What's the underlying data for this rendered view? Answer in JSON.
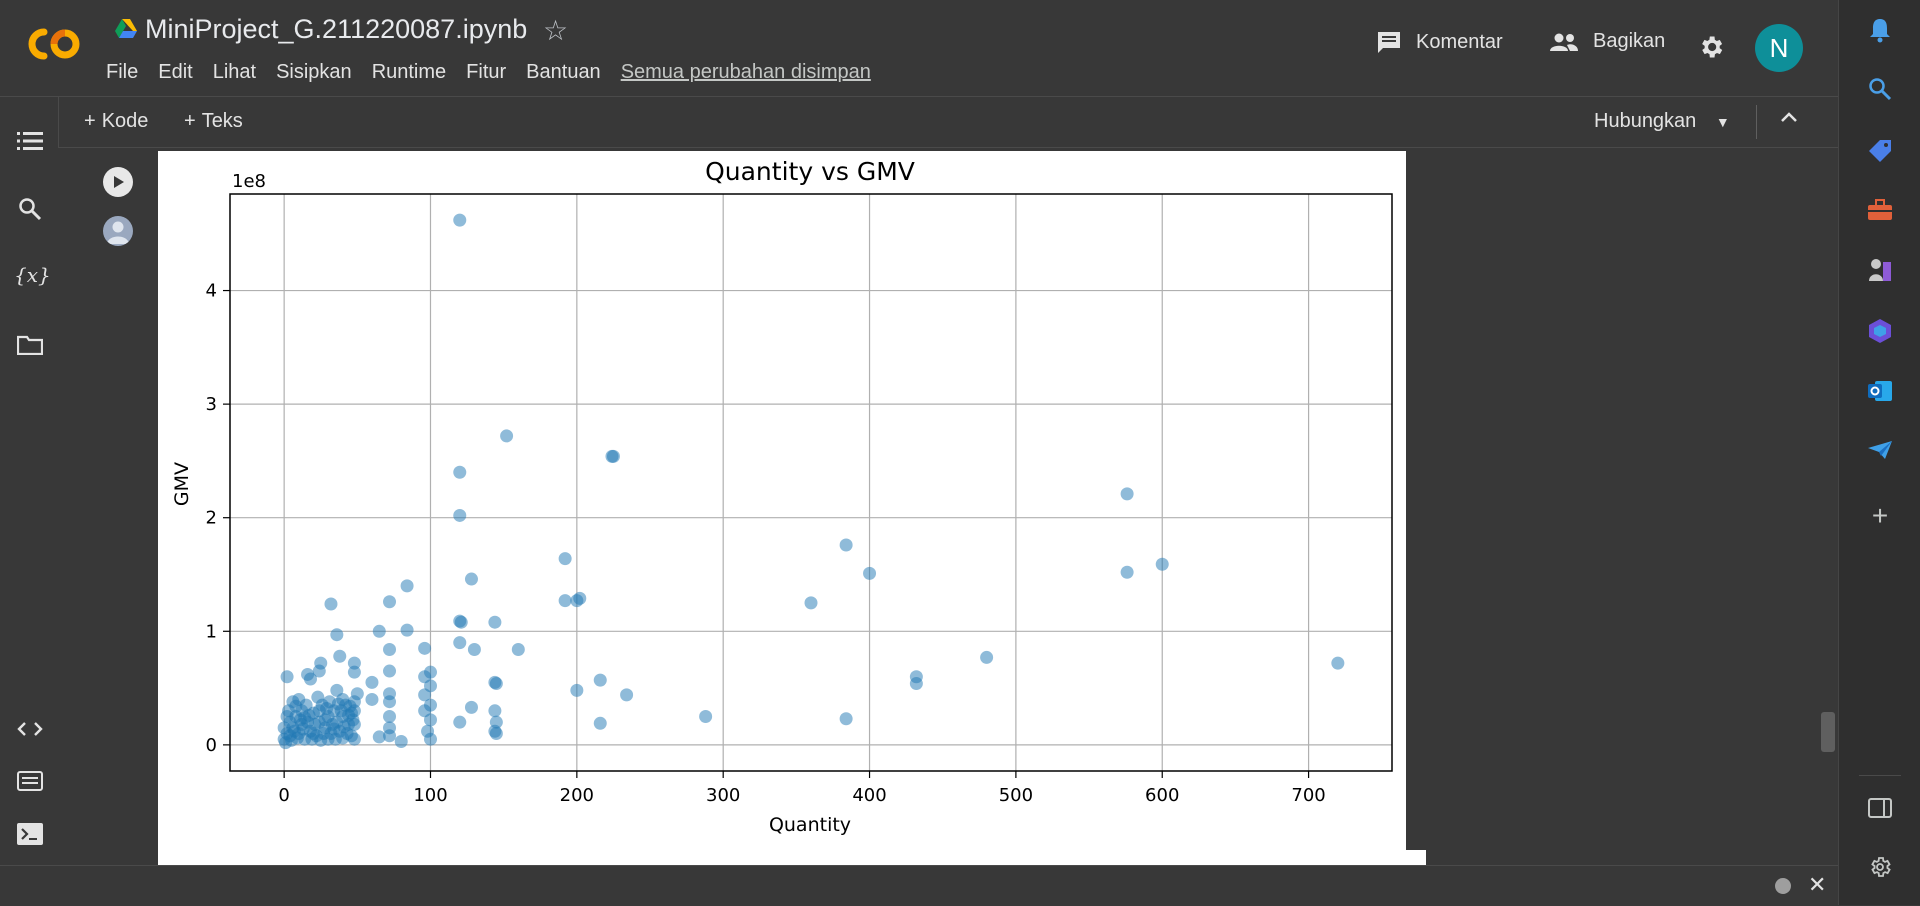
{
  "app": {
    "notebook_title": "MiniProject_G.211220087.ipynb",
    "menu": [
      "File",
      "Edit",
      "Lihat",
      "Sisipkan",
      "Runtime",
      "Fitur",
      "Bantuan"
    ],
    "saved_status": "Semua perubahan disimpan",
    "comment_label": "Komentar",
    "share_label": "Bagikan",
    "avatar_letter": "N"
  },
  "toolbar": {
    "add_code": "Kode",
    "add_text": "Teks",
    "connect_label": "Hubungkan"
  },
  "colors": {
    "accent_avatar": "#0e8f99",
    "scatter": "#1f77b4"
  },
  "chart_data": {
    "type": "scatter",
    "title": "Quantity vs GMV",
    "xlabel": "Quantity",
    "ylabel": "GMV",
    "y_offset_label": "1e8",
    "xlim": [
      -37,
      757
    ],
    "ylim": [
      -0.23,
      4.85
    ],
    "xticks": [
      0,
      100,
      200,
      300,
      400,
      500,
      600,
      700
    ],
    "yticks": [
      0,
      1,
      2,
      3,
      4
    ],
    "grid": true,
    "series": [
      {
        "points": [
          [
            120,
            4.62
          ],
          [
            152,
            2.72
          ],
          [
            224,
            2.54
          ],
          [
            225,
            2.54
          ],
          [
            120,
            2.4
          ],
          [
            120,
            2.02
          ],
          [
            192,
            1.64
          ],
          [
            384,
            1.76
          ],
          [
            400,
            1.51
          ],
          [
            576,
            2.21
          ],
          [
            576,
            1.52
          ],
          [
            600,
            1.59
          ],
          [
            360,
            1.25
          ],
          [
            720,
            0.72
          ],
          [
            480,
            0.77
          ],
          [
            432,
            0.6
          ],
          [
            432,
            0.54
          ],
          [
            288,
            0.25
          ],
          [
            384,
            0.23
          ],
          [
            216,
            0.19
          ],
          [
            234,
            0.44
          ],
          [
            200,
            0.48
          ],
          [
            216,
            0.57
          ],
          [
            192,
            1.27
          ],
          [
            200,
            1.27
          ],
          [
            202,
            1.29
          ],
          [
            84,
            1.4
          ],
          [
            72,
            1.26
          ],
          [
            32,
            1.24
          ],
          [
            144,
            1.08
          ],
          [
            120,
            1.09
          ],
          [
            121,
            1.08
          ],
          [
            128,
            1.46
          ],
          [
            160,
            0.84
          ],
          [
            130,
            0.84
          ],
          [
            120,
            0.9
          ],
          [
            84,
            1.01
          ],
          [
            72,
            0.84
          ],
          [
            65,
            1.0
          ],
          [
            96,
            0.85
          ],
          [
            36,
            0.97
          ],
          [
            38,
            0.78
          ],
          [
            48,
            0.72
          ],
          [
            25,
            0.72
          ],
          [
            144,
            0.55
          ],
          [
            145,
            0.54
          ],
          [
            144,
            0.3
          ],
          [
            145,
            0.2
          ],
          [
            144,
            0.12
          ],
          [
            145,
            0.1
          ],
          [
            128,
            0.33
          ],
          [
            120,
            0.2
          ],
          [
            100,
            0.64
          ],
          [
            96,
            0.6
          ],
          [
            100,
            0.52
          ],
          [
            96,
            0.44
          ],
          [
            100,
            0.35
          ],
          [
            96,
            0.3
          ],
          [
            100,
            0.22
          ],
          [
            98,
            0.12
          ],
          [
            100,
            0.05
          ],
          [
            72,
            0.65
          ],
          [
            72,
            0.45
          ],
          [
            72,
            0.38
          ],
          [
            72,
            0.25
          ],
          [
            72,
            0.15
          ],
          [
            72,
            0.08
          ],
          [
            80,
            0.03
          ],
          [
            65,
            0.07
          ],
          [
            60,
            0.4
          ],
          [
            60,
            0.55
          ],
          [
            48,
            0.64
          ],
          [
            50,
            0.45
          ],
          [
            48,
            0.3
          ],
          [
            48,
            0.18
          ],
          [
            48,
            0.05
          ],
          [
            2,
            0.6
          ],
          [
            6,
            0.38
          ],
          [
            10,
            0.4
          ],
          [
            16,
            0.62
          ],
          [
            18,
            0.58
          ],
          [
            24,
            0.65
          ],
          [
            36,
            0.48
          ],
          [
            40,
            0.4
          ],
          [
            0,
            0.05
          ],
          [
            2,
            0.1
          ],
          [
            4,
            0.2
          ],
          [
            6,
            0.15
          ],
          [
            8,
            0.25
          ],
          [
            10,
            0.1
          ],
          [
            12,
            0.3
          ],
          [
            14,
            0.05
          ],
          [
            16,
            0.2
          ],
          [
            18,
            0.12
          ],
          [
            20,
            0.28
          ],
          [
            22,
            0.08
          ],
          [
            24,
            0.2
          ],
          [
            26,
            0.35
          ],
          [
            28,
            0.15
          ],
          [
            30,
            0.25
          ],
          [
            32,
            0.1
          ],
          [
            34,
            0.3
          ],
          [
            36,
            0.2
          ],
          [
            38,
            0.12
          ],
          [
            40,
            0.25
          ],
          [
            42,
            0.35
          ],
          [
            44,
            0.18
          ],
          [
            46,
            0.28
          ],
          [
            48,
            0.38
          ],
          [
            3,
            0.3
          ],
          [
            7,
            0.12
          ],
          [
            11,
            0.22
          ],
          [
            15,
            0.35
          ],
          [
            19,
            0.05
          ],
          [
            23,
            0.42
          ],
          [
            27,
            0.1
          ],
          [
            31,
            0.38
          ],
          [
            35,
            0.05
          ],
          [
            39,
            0.3
          ],
          [
            43,
            0.1
          ],
          [
            47,
            0.22
          ],
          [
            1,
            0.02
          ],
          [
            5,
            0.04
          ],
          [
            9,
            0.06
          ],
          [
            13,
            0.14
          ],
          [
            17,
            0.26
          ],
          [
            21,
            0.18
          ],
          [
            25,
            0.04
          ],
          [
            29,
            0.32
          ],
          [
            33,
            0.18
          ],
          [
            37,
            0.36
          ],
          [
            41,
            0.16
          ],
          [
            45,
            0.34
          ],
          [
            0,
            0.15
          ],
          [
            2,
            0.25
          ],
          [
            4,
            0.08
          ],
          [
            8,
            0.34
          ],
          [
            12,
            0.18
          ],
          [
            14,
            0.24
          ],
          [
            20,
            0.1
          ],
          [
            24,
            0.3
          ],
          [
            28,
            0.22
          ],
          [
            30,
            0.05
          ],
          [
            34,
            0.14
          ],
          [
            40,
            0.06
          ],
          [
            44,
            0.26
          ],
          [
            46,
            0.08
          ]
        ]
      }
    ]
  }
}
